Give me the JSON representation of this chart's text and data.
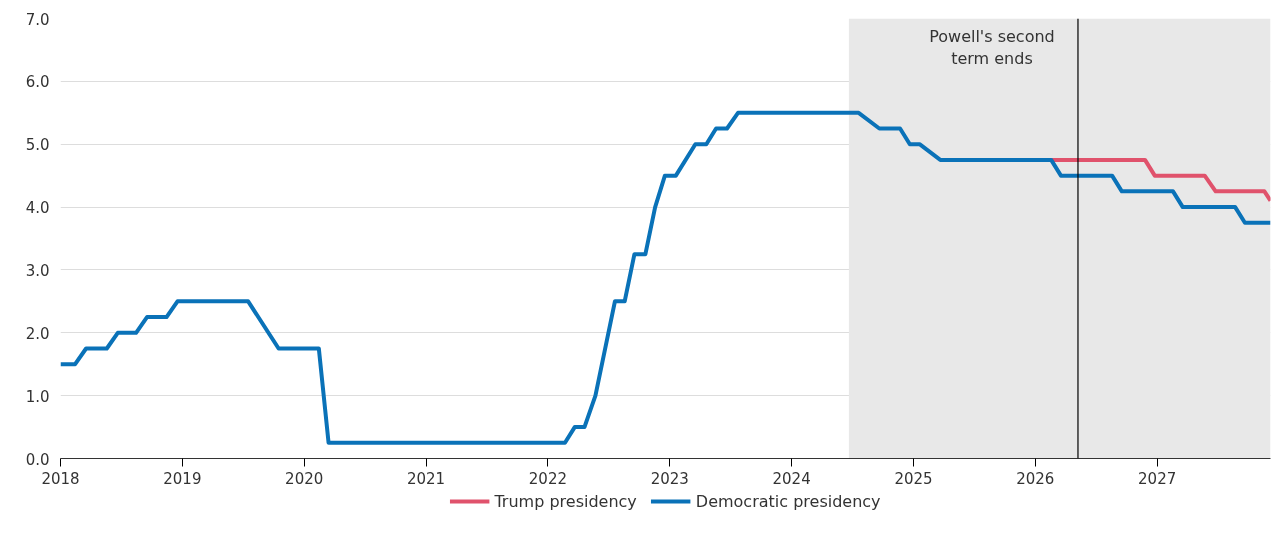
{
  "chart_data": {
    "type": "line",
    "xlim": [
      2018,
      2027.93
    ],
    "ylim": [
      0,
      7
    ],
    "xticks": [
      2018,
      2019,
      2020,
      2021,
      2022,
      2023,
      2024,
      2025,
      2026,
      2027
    ],
    "yticks": [
      {
        "value": 0,
        "label": "0.0"
      },
      {
        "value": 1,
        "label": "1.0"
      },
      {
        "value": 2,
        "label": "2.0"
      },
      {
        "value": 3,
        "label": "3.0"
      },
      {
        "value": 4,
        "label": "4.0"
      },
      {
        "value": 5,
        "label": "5.0"
      },
      {
        "value": 6,
        "label": "6.0"
      },
      {
        "value": 7,
        "label": "7.0"
      }
    ],
    "grid": "y",
    "legend": "bottom",
    "line_style": "solid",
    "marker": "none",
    "series": [
      {
        "name": "Trump presidency",
        "color": "#e0526c",
        "x": [
          2026.13,
          2026.9,
          2026.98,
          2027.39,
          2027.48,
          2027.88,
          2027.93
        ],
        "values": [
          4.75,
          4.75,
          4.5,
          4.5,
          4.25,
          4.25,
          4.1
        ]
      },
      {
        "name": "Democratic presidency",
        "color": "#0a72b8",
        "x": [
          2018.0,
          2018.12,
          2018.21,
          2018.38,
          2018.47,
          2018.62,
          2018.71,
          2018.87,
          2018.96,
          2019.54,
          2019.79,
          2020.12,
          2020.2,
          2022.14,
          2022.22,
          2022.3,
          2022.39,
          2022.55,
          2022.63,
          2022.71,
          2022.8,
          2022.88,
          2022.96,
          2023.05,
          2023.21,
          2023.3,
          2023.38,
          2023.47,
          2023.56,
          2024.55,
          2024.72,
          2024.89,
          2024.97,
          2025.05,
          2025.22,
          2026.13,
          2026.21,
          2026.63,
          2026.71,
          2027.13,
          2027.21,
          2027.64,
          2027.72,
          2027.93
        ],
        "values": [
          1.5,
          1.5,
          1.75,
          1.75,
          2.0,
          2.0,
          2.25,
          2.25,
          2.5,
          2.5,
          1.75,
          1.75,
          0.25,
          0.25,
          0.5,
          0.5,
          1.0,
          2.5,
          2.5,
          3.25,
          3.25,
          4.0,
          4.5,
          4.5,
          5.0,
          5.0,
          5.25,
          5.25,
          5.5,
          5.5,
          5.25,
          5.25,
          5.0,
          5.0,
          4.75,
          4.75,
          4.5,
          4.5,
          4.25,
          4.25,
          4.0,
          4.0,
          3.75,
          3.75
        ]
      }
    ],
    "bands": [
      {
        "axis": "x",
        "from": 2024.47,
        "to": 2027.93,
        "color": "#e8e8e8"
      }
    ],
    "ref_lines": [
      {
        "axis": "x",
        "value": 2026.35,
        "label": "Powell's second term ends",
        "color": "#000000",
        "line_style": "solid"
      }
    ]
  }
}
